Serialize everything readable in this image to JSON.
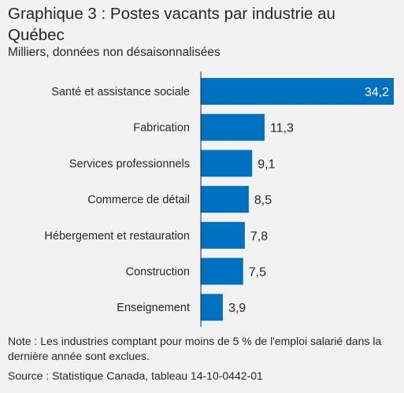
{
  "title": "Graphique 3 : Postes vacants par industrie au Québec",
  "subtitle": "Milliers, données non désaisonnalisées",
  "note": "Note : Les industries comptant pour moins de 5 % de l'emploi salarié dans la dernière année sont exclues.",
  "source": "Source : Statistique Canada, tableau 14-10-0442-01",
  "colors": {
    "bar": "#0070c0",
    "axis": "#262626",
    "background": "#f2f2f2"
  },
  "chart_data": {
    "type": "bar",
    "orientation": "horizontal",
    "title": "Graphique 3 : Postes vacants par industrie au Québec",
    "subtitle": "Milliers, données non désaisonnalisées",
    "categories": [
      "Santé et assistance sociale",
      "Fabrication",
      "Services professionnels",
      "Commerce de détail",
      "Hébergement et restauration",
      "Construction",
      "Enseignement"
    ],
    "values": [
      34.2,
      11.3,
      9.1,
      8.5,
      7.8,
      7.5,
      3.9
    ],
    "value_labels": [
      "34,2",
      "11,3",
      "9,1",
      "8,5",
      "7,8",
      "7,5",
      "3,9"
    ],
    "xlim": [
      0,
      34.2
    ],
    "grid": false,
    "legend": "none"
  }
}
